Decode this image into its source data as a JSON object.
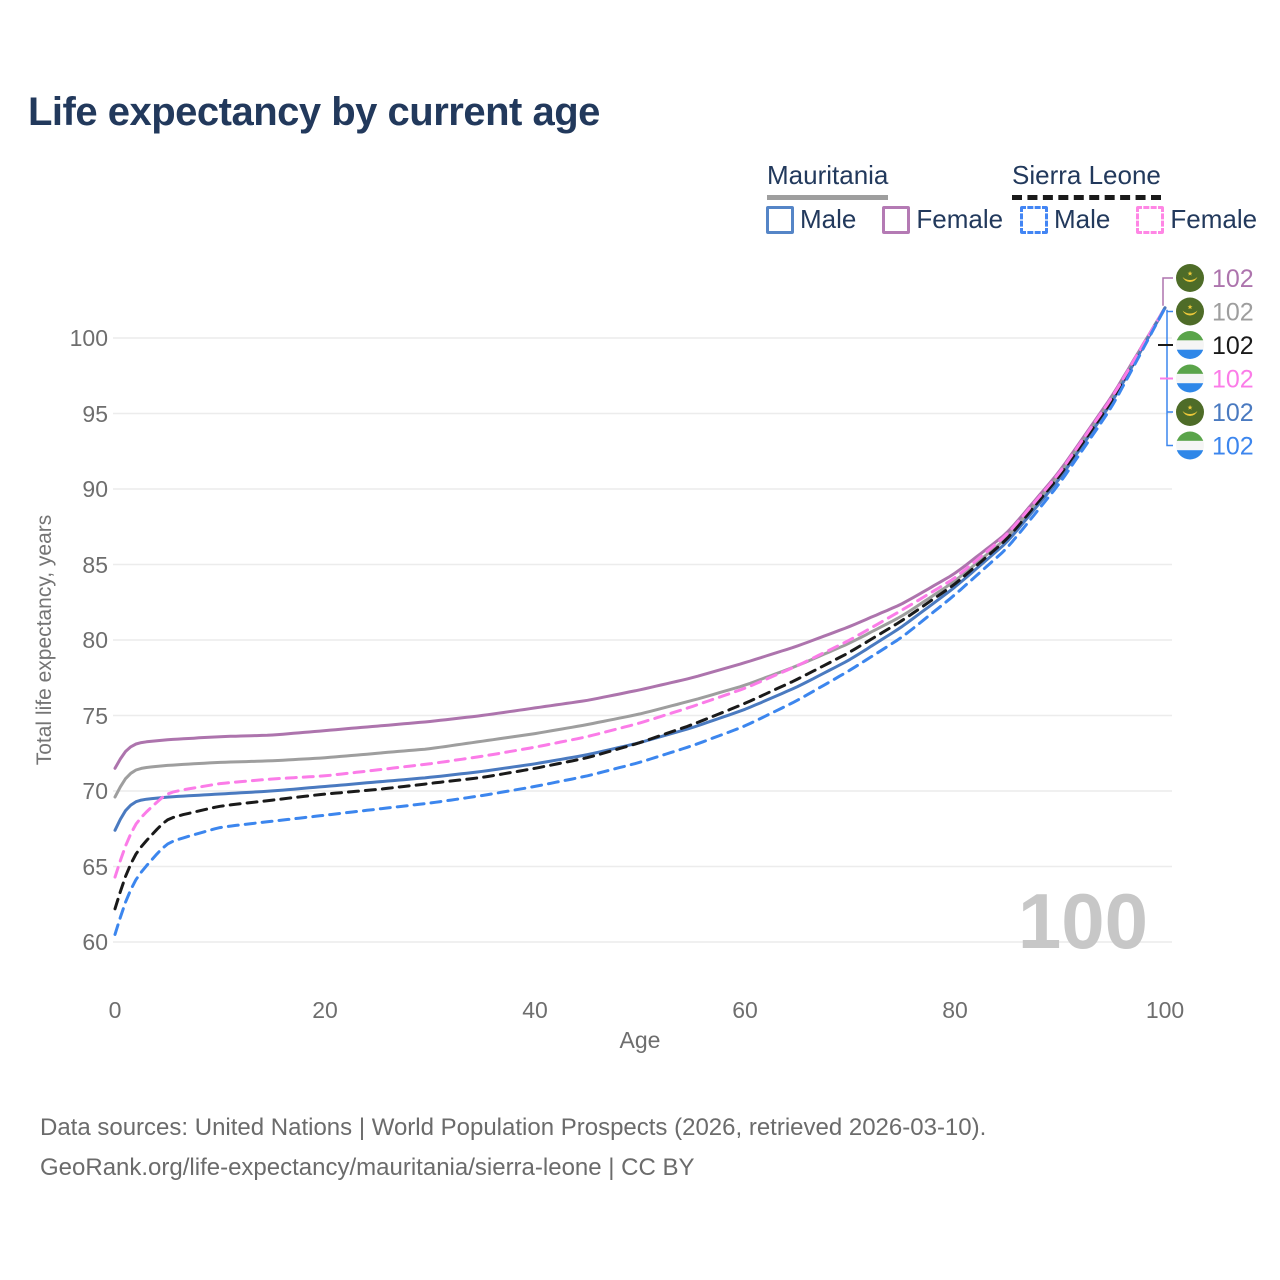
{
  "title": "Life expectancy by current age",
  "legend": {
    "mauritania": {
      "label": "Mauritania",
      "male": "Male",
      "female": "Female"
    },
    "sierra_leone": {
      "label": "Sierra Leone",
      "male": "Male",
      "female": "Female"
    }
  },
  "watermark": "100",
  "footer": {
    "line1": "Data sources: United Nations | World Population Prospects (2026, retrieved 2026-03-10).",
    "line2": "GeoRank.org/life-expectancy/mauritania/sierra-leone | CC BY"
  },
  "colors": {
    "title_navy": "#22395c",
    "grid": "#ececec",
    "tick_text": "#6e6e6e",
    "watermark": "#c7c7c7",
    "mauritania_female": "#ad74ad",
    "mauritania_both": "#9e9e9e",
    "mauritania_male": "#4a7ac0",
    "sierra_leone_both": "#1a1a1a",
    "sierra_leone_female": "#fb7ce8",
    "sierra_leone_male": "#3c86ee",
    "flag_mr_green": "#4e6c28",
    "flag_mr_yellow": "#eec93a",
    "flag_sl_green": "#5aa44a",
    "flag_sl_white": "#f5f5f5",
    "flag_sl_blue": "#2f87e8"
  },
  "chart_data": {
    "type": "line",
    "title": "Life expectancy by current age",
    "xlabel": "Age",
    "ylabel": "Total life expectancy, years",
    "xlim": [
      0,
      100
    ],
    "ylim": [
      60,
      103
    ],
    "grid": "horizontal",
    "xticks": [
      0,
      20,
      40,
      60,
      80,
      100
    ],
    "yticks": [
      60,
      65,
      70,
      75,
      80,
      85,
      90,
      95,
      100
    ],
    "x": [
      0,
      1,
      2,
      5,
      10,
      15,
      20,
      25,
      30,
      35,
      40,
      45,
      50,
      55,
      60,
      65,
      70,
      75,
      80,
      85,
      90,
      95,
      100
    ],
    "series": [
      {
        "name": "Mauritania Female",
        "country": "mauritania",
        "sex": "female",
        "color": "#ad74ad",
        "dash": "solid",
        "end_label": "102",
        "label_row": 0,
        "values": [
          71.5,
          72.8,
          73.2,
          73.4,
          73.6,
          73.7,
          74.0,
          74.3,
          74.6,
          75.0,
          75.5,
          76.0,
          76.7,
          77.5,
          78.5,
          79.6,
          80.9,
          82.4,
          84.4,
          87.1,
          91.2,
          96.2,
          102
        ]
      },
      {
        "name": "Mauritania",
        "country": "mauritania",
        "sex": "both",
        "color": "#9e9e9e",
        "dash": "solid",
        "end_label": "102",
        "label_row": 1,
        "values": [
          69.6,
          71.0,
          71.5,
          71.7,
          71.9,
          72.0,
          72.2,
          72.5,
          72.8,
          73.3,
          73.8,
          74.4,
          75.1,
          76.0,
          77.0,
          78.3,
          79.8,
          81.6,
          83.9,
          86.8,
          91.0,
          96.0,
          102
        ]
      },
      {
        "name": "Mauritania Male",
        "country": "mauritania",
        "sex": "male",
        "color": "#4a7ac0",
        "dash": "solid",
        "end_label": "102",
        "label_row": 4,
        "values": [
          67.4,
          68.9,
          69.4,
          69.6,
          69.8,
          70.0,
          70.3,
          70.6,
          70.9,
          71.3,
          71.8,
          72.4,
          73.2,
          74.2,
          75.4,
          76.9,
          78.7,
          80.9,
          83.5,
          86.5,
          90.7,
          95.8,
          102
        ]
      },
      {
        "name": "Sierra Leone",
        "country": "sierra-leone",
        "sex": "both",
        "color": "#1a1a1a",
        "dash": "dashed",
        "end_label": "102",
        "label_row": 2,
        "values": [
          62.2,
          64.5,
          66.0,
          68.2,
          69.0,
          69.4,
          69.8,
          70.1,
          70.5,
          70.9,
          71.5,
          72.2,
          73.2,
          74.4,
          75.8,
          77.4,
          79.2,
          81.3,
          83.7,
          86.7,
          90.9,
          95.9,
          102
        ]
      },
      {
        "name": "Sierra Leone Female",
        "country": "sierra-leone",
        "sex": "female",
        "color": "#fb7ce8",
        "dash": "dashed",
        "end_label": "102",
        "label_row": 3,
        "values": [
          64.3,
          66.5,
          68.0,
          69.9,
          70.5,
          70.8,
          71.0,
          71.4,
          71.8,
          72.3,
          72.9,
          73.6,
          74.5,
          75.6,
          76.8,
          78.3,
          80.0,
          82.0,
          84.1,
          87.0,
          91.1,
          96.1,
          102
        ]
      },
      {
        "name": "Sierra Leone Male",
        "country": "sierra-leone",
        "sex": "male",
        "color": "#3c86ee",
        "dash": "dashed",
        "end_label": "102",
        "label_row": 5,
        "values": [
          60.5,
          62.8,
          64.3,
          66.6,
          67.6,
          68.0,
          68.4,
          68.8,
          69.2,
          69.7,
          70.3,
          71.0,
          71.9,
          73.0,
          74.3,
          76.0,
          78.0,
          80.2,
          83.0,
          86.1,
          90.4,
          95.5,
          102
        ]
      }
    ]
  }
}
